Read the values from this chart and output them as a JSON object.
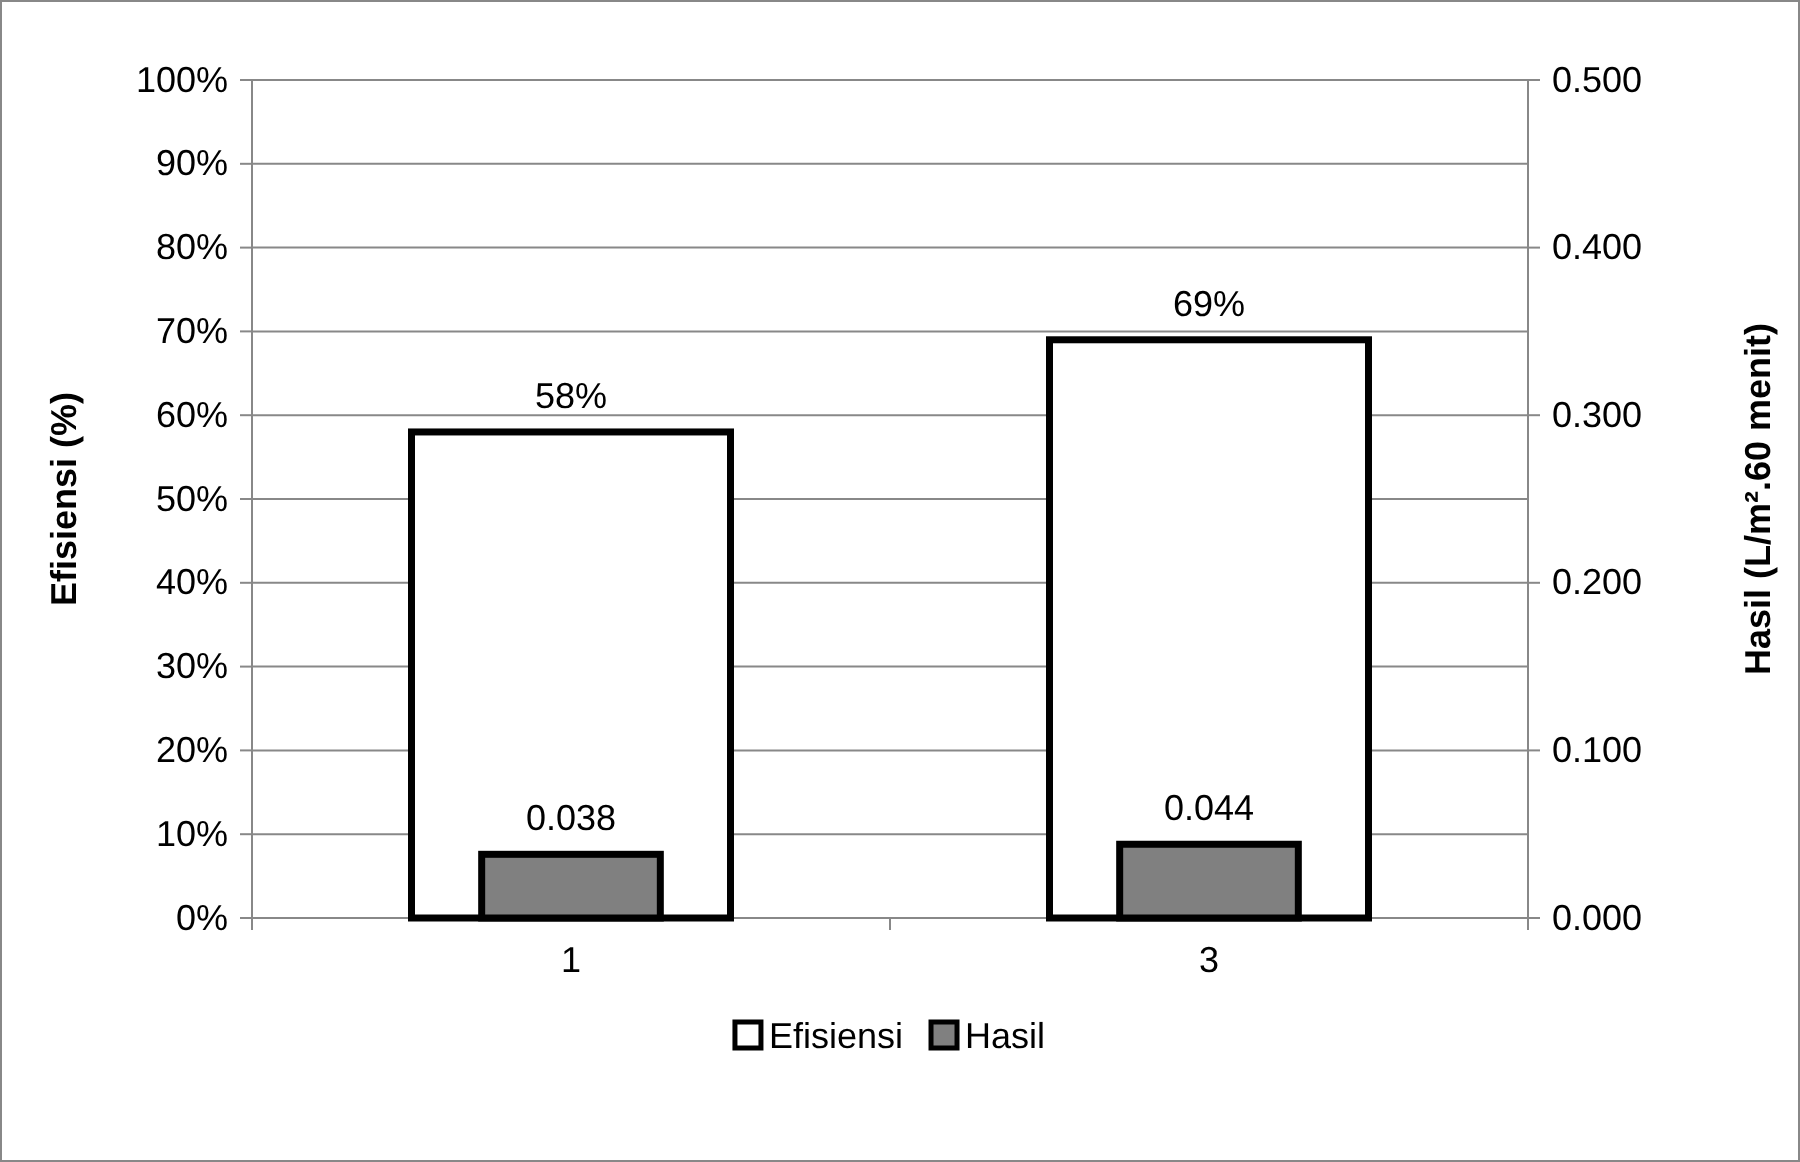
{
  "chart_data": {
    "type": "bar",
    "categories": [
      "1",
      "3"
    ],
    "ylabel": "Efisiensi (%)",
    "y2label": "Hasil (L/m².60 menit)",
    "series": [
      {
        "name": "Efisiensi",
        "color": "#ffffff",
        "values": [
          58,
          69
        ],
        "value_labels": [
          "58%",
          "69%"
        ]
      },
      {
        "name": "Hasil",
        "color": "#808080",
        "values": [
          0.038,
          0.044
        ],
        "axis": "y2",
        "value_labels": [
          "0.038",
          "0.044"
        ]
      }
    ],
    "ylim": [
      0,
      100
    ],
    "yticks": [
      {
        "value": 0,
        "label": "0%"
      },
      {
        "value": 10,
        "label": "10%"
      },
      {
        "value": 20,
        "label": "20%"
      },
      {
        "value": 30,
        "label": "30%"
      },
      {
        "value": 40,
        "label": "40%"
      },
      {
        "value": 50,
        "label": "50%"
      },
      {
        "value": 60,
        "label": "60%"
      },
      {
        "value": 70,
        "label": "70%"
      },
      {
        "value": 80,
        "label": "80%"
      },
      {
        "value": 90,
        "label": "90%"
      },
      {
        "value": 100,
        "label": "100%"
      }
    ],
    "y2lim": [
      0,
      0.5
    ],
    "y2ticks": [
      {
        "value": 0,
        "label": "0.000"
      },
      {
        "value": 0.1,
        "label": "0.100"
      },
      {
        "value": 0.2,
        "label": "0.200"
      },
      {
        "value": 0.3,
        "label": "0.300"
      },
      {
        "value": 0.4,
        "label": "0.400"
      },
      {
        "value": 0.5,
        "label": "0.500"
      }
    ],
    "grid": "y",
    "legend": "bottom"
  }
}
